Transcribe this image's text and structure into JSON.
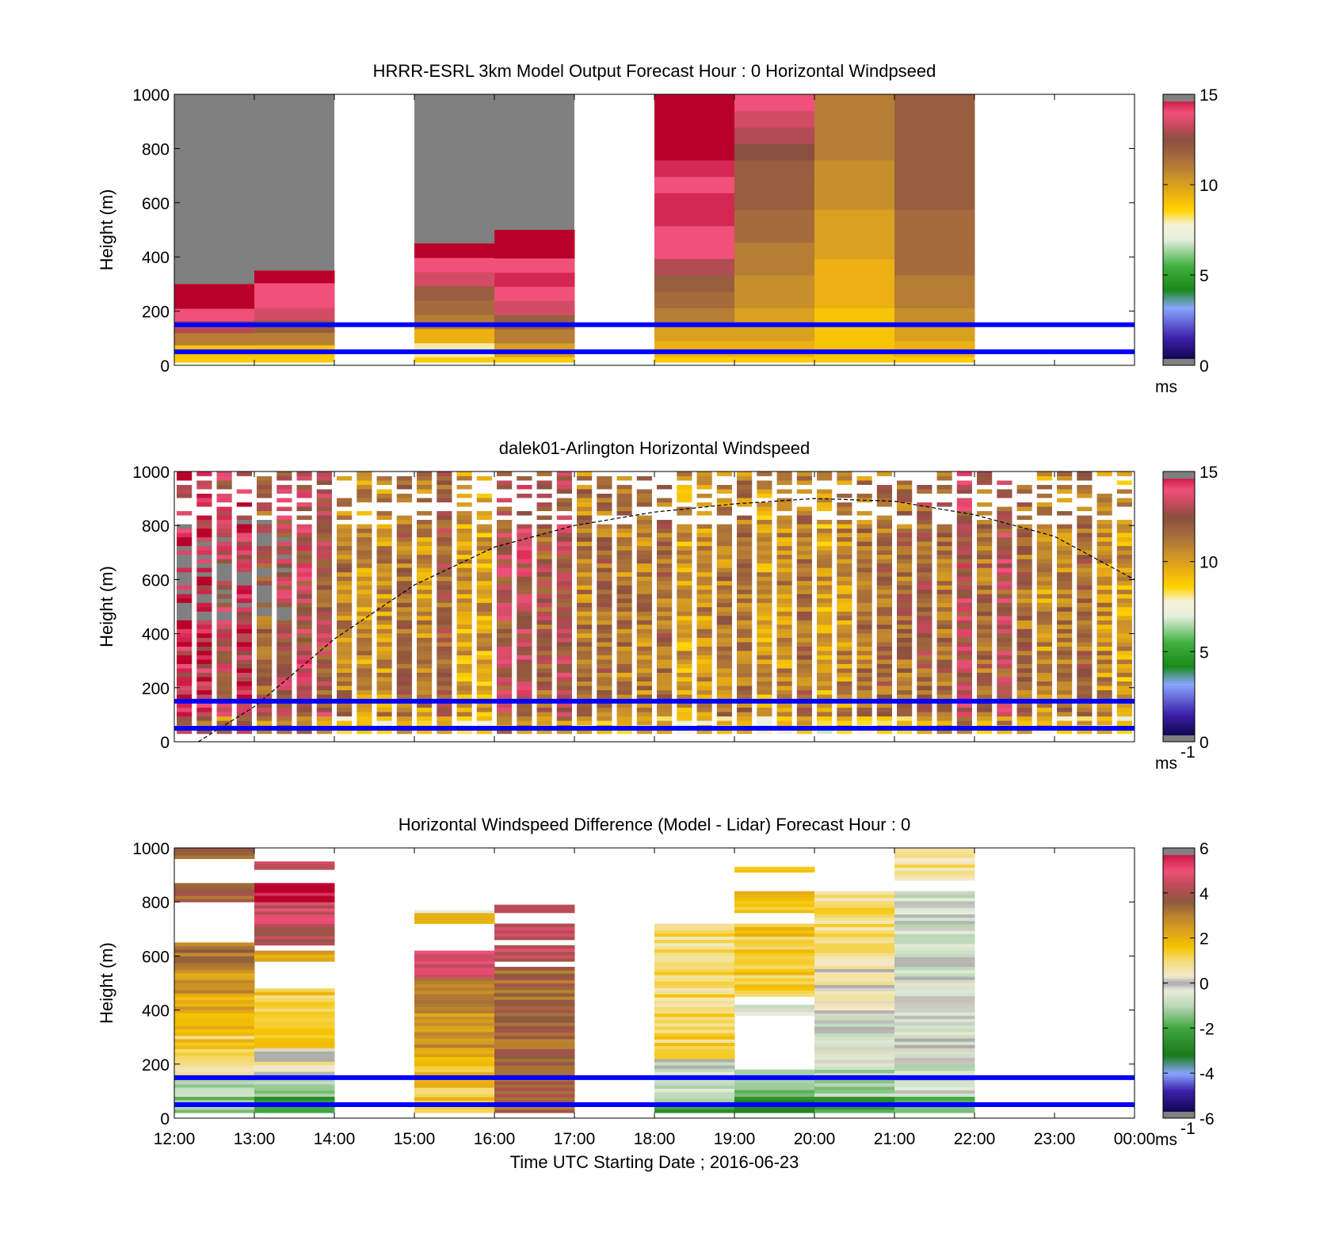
{
  "chart_data": [
    {
      "type": "heatmap",
      "title": "HRRR-ESRL 3km Model Output   Forecast Hour : 0 Horizontal Windpseed",
      "ylabel": "Height (m)",
      "ylim": [
        0,
        1000
      ],
      "yticks": [
        "0",
        "200",
        "400",
        "600",
        "800",
        "1000"
      ],
      "xlim_hours": [
        12,
        24
      ],
      "colorbar": {
        "min": 0,
        "max": 15,
        "ticks": [
          "0",
          "5",
          "10",
          "15"
        ],
        "unit_label": "ms",
        "unit_sup": ""
      },
      "reference_lines_m": [
        150,
        50
      ],
      "reference_line_color": "#0000ff",
      "columns": [
        {
          "start": "12:00",
          "end": "13:00",
          "base_m": 30,
          "top_m": 300,
          "speeds_ms": [
            9,
            11,
            13,
            14,
            15,
            15
          ],
          "gray_above_m": 1000
        },
        {
          "start": "13:00",
          "end": "14:00",
          "base_m": 30,
          "top_m": 350,
          "speeds_ms": [
            9,
            11,
            12,
            13.5,
            14,
            14,
            15
          ],
          "gray_above_m": 1000
        },
        {
          "start": "15:00",
          "end": "16:00",
          "base_m": 30,
          "top_m": 450,
          "speeds_ms": [
            8,
            9.5,
            11,
            11.5,
            12,
            13.5,
            14,
            15
          ],
          "gray_above_m": 1000
        },
        {
          "start": "16:00",
          "end": "17:00",
          "base_m": 30,
          "top_m": 500,
          "speeds_ms": [
            10,
            11,
            12,
            13.5,
            14,
            14.5,
            14,
            15,
            15
          ],
          "gray_above_m": 1000
        },
        {
          "start": "18:00",
          "end": "19:00",
          "base_m": 30,
          "top_m": 1000,
          "speeds_ms": [
            9.5,
            10,
            11,
            11.5,
            12,
            13,
            14,
            14,
            14.5,
            14.5,
            14,
            14.5,
            15,
            15,
            15,
            15
          ]
        },
        {
          "start": "19:00",
          "end": "20:00",
          "base_m": 30,
          "top_m": 1000,
          "speeds_ms": [
            9.5,
            10,
            10,
            10.5,
            10.5,
            11,
            11,
            11.5,
            11.5,
            12,
            12,
            12,
            12.5,
            13,
            13.5,
            14
          ]
        },
        {
          "start": "20:00",
          "end": "21:00",
          "base_m": 30,
          "top_m": 1000,
          "speeds_ms": [
            9,
            9,
            9,
            9.5,
            9.5,
            9.5,
            10,
            10,
            10,
            10.5,
            10.5,
            10.5,
            11,
            11,
            11,
            11
          ]
        },
        {
          "start": "21:00",
          "end": "22:00",
          "base_m": 30,
          "top_m": 1000,
          "speeds_ms": [
            9.5,
            10,
            10.5,
            11,
            11,
            11.5,
            11.5,
            11.5,
            11.5,
            12,
            12,
            12,
            12,
            12,
            12,
            12
          ]
        }
      ]
    },
    {
      "type": "heatmap",
      "title": "dalek01-Arlington  Horizontal Windspeed",
      "ylabel": "Height (m)",
      "ylim": [
        0,
        1000
      ],
      "yticks": [
        "0",
        "200",
        "400",
        "600",
        "800",
        "1000"
      ],
      "xlim_hours": [
        12,
        24
      ],
      "colorbar": {
        "min": 0,
        "max": 15,
        "ticks": [
          "0",
          "5",
          "10",
          "15"
        ],
        "unit_label": "ms",
        "unit_sup": "-1"
      },
      "reference_lines_m": [
        150,
        50
      ],
      "reference_line_color": "#0000ff",
      "time_step_minutes": 15,
      "column_mean_speed_ms": [
        14,
        14,
        13,
        14,
        12,
        13,
        13,
        12.5,
        11,
        10.5,
        10.5,
        11.5,
        10.5,
        12,
        10,
        10,
        12.5,
        13,
        12,
        12.5,
        11,
        11.5,
        11,
        11,
        11.5,
        10,
        10.5,
        11,
        11,
        10,
        10.5,
        11.5,
        10,
        10.5,
        11,
        11.5,
        11.5,
        12,
        11.5,
        13,
        11.5,
        12.5,
        11.5,
        10.5,
        11,
        11.5,
        10.5,
        10
      ],
      "sample_grid_m": [
        30,
        1000
      ],
      "boundary_layer_curve": {
        "style": "dashed",
        "points_hours_m": [
          [
            12.3,
            0
          ],
          [
            13,
            130
          ],
          [
            14,
            380
          ],
          [
            15,
            580
          ],
          [
            16,
            720
          ],
          [
            17,
            800
          ],
          [
            18,
            850
          ],
          [
            19,
            880
          ],
          [
            20,
            900
          ],
          [
            21,
            890
          ],
          [
            22,
            840
          ],
          [
            23,
            760
          ],
          [
            24,
            600
          ]
        ]
      }
    },
    {
      "type": "heatmap",
      "title": "Horizontal Windspeed Difference (Model - Lidar) Forecast Hour : 0",
      "ylabel": "Height (m)",
      "xlabel": "Time UTC  Starting Date ; 2016-06-23",
      "ylim": [
        0,
        1000
      ],
      "yticks": [
        "0",
        "200",
        "400",
        "600",
        "800",
        "1000"
      ],
      "xticks": [
        "12:00",
        "13:00",
        "14:00",
        "15:00",
        "16:00",
        "17:00",
        "18:00",
        "19:00",
        "20:00",
        "21:00",
        "22:00",
        "23:00",
        "00:00"
      ],
      "xlim_hours": [
        12,
        24
      ],
      "colorbar": {
        "min": -6,
        "max": 6,
        "ticks": [
          "-6",
          "-4",
          "-2",
          "0",
          "2",
          "4",
          "6"
        ],
        "unit_label": "ms",
        "unit_sup": "-1"
      },
      "reference_lines_m": [
        150,
        50
      ],
      "reference_line_color": "#0000ff",
      "columns": [
        {
          "start": "12:00",
          "end": "13:00",
          "bands": [
            [
              20,
              80,
              -1.5
            ],
            [
              80,
              160,
              -0.8
            ],
            [
              160,
              220,
              0.5
            ],
            [
              220,
              330,
              1.5
            ],
            [
              330,
              450,
              2
            ],
            [
              450,
              550,
              2.5
            ],
            [
              550,
              650,
              3
            ],
            [
              800,
              870,
              3.5
            ],
            [
              960,
              1000,
              3.5
            ]
          ]
        },
        {
          "start": "13:00",
          "end": "14:00",
          "bands": [
            [
              20,
              80,
              -2.2
            ],
            [
              80,
              160,
              -1
            ],
            [
              160,
              260,
              0.5
            ],
            [
              260,
              480,
              1.5
            ],
            [
              580,
              620,
              2.5
            ],
            [
              640,
              720,
              4
            ],
            [
              720,
              800,
              4.5
            ],
            [
              800,
              870,
              6
            ],
            [
              920,
              950,
              4.5
            ]
          ]
        },
        {
          "start": "15:00",
          "end": "16:00",
          "bands": [
            [
              20,
              160,
              1.5
            ],
            [
              160,
              250,
              1.8
            ],
            [
              250,
              400,
              2.5
            ],
            [
              400,
              520,
              3
            ],
            [
              520,
              620,
              4.5
            ],
            [
              720,
              760,
              1.5
            ],
            [
              760,
              770,
              0
            ]
          ]
        },
        {
          "start": "16:00",
          "end": "17:00",
          "bands": [
            [
              20,
              160,
              3.5
            ],
            [
              160,
              560,
              3.5
            ],
            [
              580,
              640,
              4.5
            ],
            [
              660,
              720,
              4.5
            ],
            [
              760,
              790,
              4.5
            ]
          ]
        },
        {
          "start": "18:00",
          "end": "19:00",
          "bands": [
            [
              20,
              60,
              -2.5
            ],
            [
              60,
              160,
              -0.8
            ],
            [
              160,
              220,
              -0.3
            ],
            [
              220,
              400,
              1.2
            ],
            [
              400,
              720,
              1
            ]
          ]
        },
        {
          "start": "19:00",
          "end": "20:00",
          "bands": [
            [
              20,
              80,
              -2.5
            ],
            [
              80,
              180,
              -1.2
            ],
            [
              380,
              420,
              -0.3
            ],
            [
              450,
              530,
              1.5
            ],
            [
              530,
              720,
              1.5
            ],
            [
              760,
              840,
              1.5
            ],
            [
              910,
              930,
              1.5
            ]
          ]
        },
        {
          "start": "20:00",
          "end": "21:00",
          "bands": [
            [
              20,
              80,
              -2.2
            ],
            [
              80,
              180,
              -1
            ],
            [
              180,
              400,
              -0.3
            ],
            [
              400,
              600,
              0.3
            ],
            [
              600,
              840,
              1
            ]
          ]
        },
        {
          "start": "21:00",
          "end": "22:00",
          "bands": [
            [
              20,
              80,
              -2
            ],
            [
              80,
              200,
              -0.6
            ],
            [
              200,
              500,
              -0.3
            ],
            [
              500,
              840,
              -0.5
            ],
            [
              880,
              1000,
              0.8
            ]
          ]
        }
      ]
    }
  ]
}
